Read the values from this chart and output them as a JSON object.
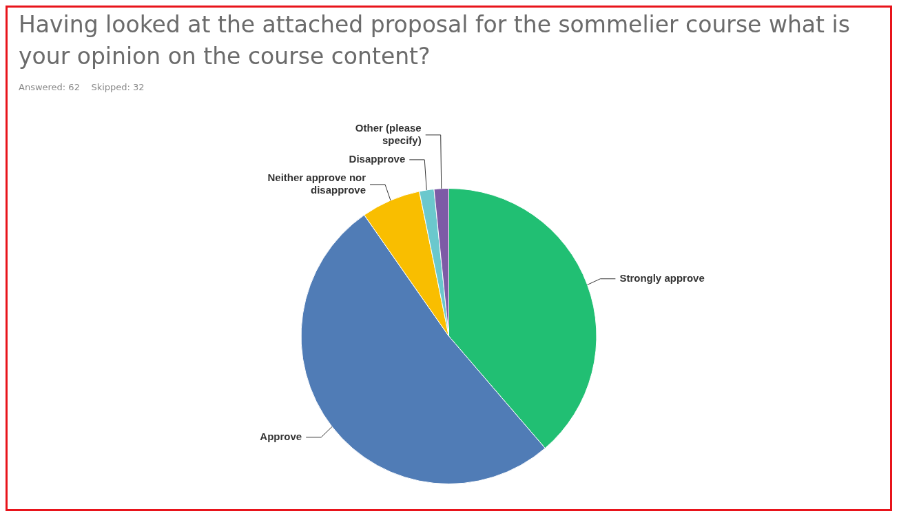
{
  "chart_data": {
    "type": "pie",
    "title": "Having looked at the attached proposal for the sommelier course what is your opinion on the course content?",
    "subtitle": "Answered: 62    Skipped: 32",
    "categories": [
      "Strongly approve",
      "Approve",
      "Neither approve nor disapprove",
      "Disapprove",
      "Other (please specify)"
    ],
    "values": [
      38.7,
      51.6,
      6.5,
      1.6,
      1.6
    ],
    "colors": [
      "#21bf73",
      "#507cb6",
      "#f9be00",
      "#6bc8cd",
      "#7d5ba6"
    ],
    "legend": false
  }
}
